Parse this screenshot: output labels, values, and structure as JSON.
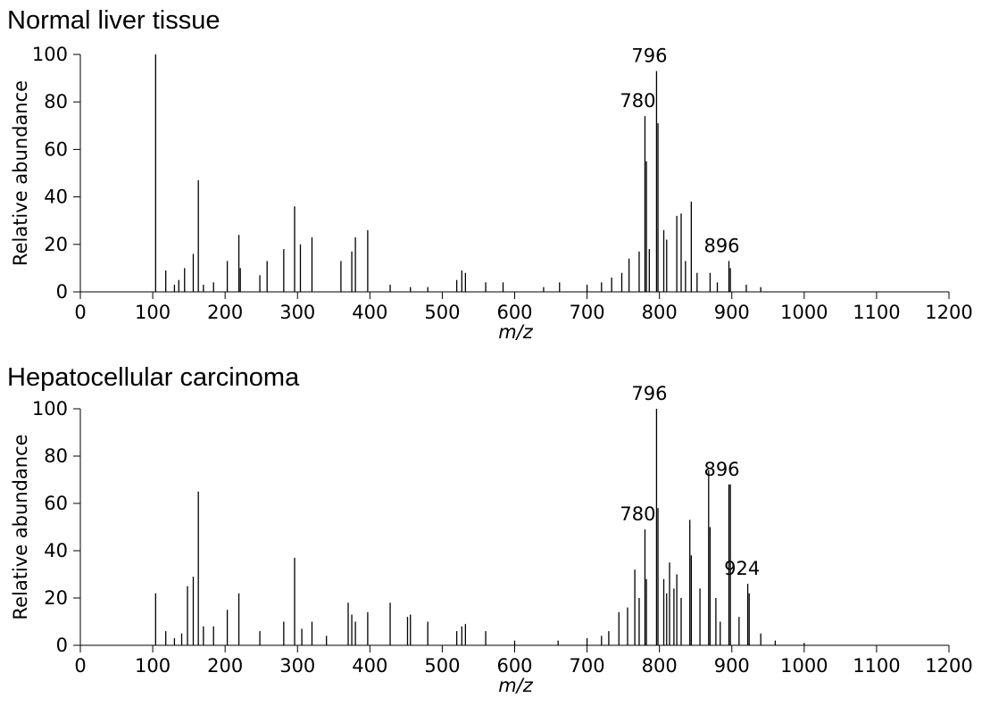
{
  "chart_data": [
    {
      "type": "stem",
      "title": "Normal liver tissue",
      "x_label": "m/z",
      "y_label": "Relative abundance",
      "color": "#000000",
      "x": [
        104,
        118,
        130,
        136,
        144,
        156,
        163,
        170,
        184,
        203,
        219,
        221,
        248,
        258,
        281,
        296,
        304,
        320,
        360,
        375,
        380,
        397,
        428,
        456,
        480,
        520,
        527,
        532,
        560,
        584,
        640,
        662,
        700,
        720,
        734,
        748,
        758,
        772,
        780,
        782,
        786,
        796,
        798,
        806,
        810,
        824,
        830,
        836,
        844,
        852,
        870,
        880,
        896,
        898,
        920,
        940
      ],
      "values": [
        100,
        9,
        3,
        5,
        10,
        16,
        47,
        3,
        4,
        13,
        24,
        10,
        7,
        13,
        18,
        36,
        20,
        23,
        13,
        17,
        23,
        26,
        3,
        2,
        2,
        5,
        9,
        8,
        4,
        4,
        2,
        4,
        3,
        4,
        6,
        8,
        14,
        17,
        74,
        55,
        18,
        93,
        71,
        26,
        22,
        32,
        33,
        13,
        38,
        8,
        8,
        4,
        13,
        10,
        3,
        2
      ],
      "annotations": [
        {
          "text": "780",
          "x": 780,
          "y": 74
        },
        {
          "text": "796",
          "x": 796,
          "y": 93
        },
        {
          "text": "896",
          "x": 896,
          "y": 13
        }
      ],
      "xlim": [
        0,
        1200
      ],
      "xticks": [
        0,
        100,
        200,
        300,
        400,
        500,
        600,
        700,
        800,
        900,
        1000,
        1100,
        1200
      ],
      "ylim": [
        0,
        100
      ],
      "yticks": [
        0,
        20,
        40,
        60,
        80,
        100
      ]
    },
    {
      "type": "stem",
      "title": "Hepatocellular carcinoma",
      "x_label": "m/z",
      "y_label": "Relative abundance",
      "color": "#000000",
      "x": [
        104,
        118,
        130,
        140,
        148,
        156,
        163,
        170,
        184,
        203,
        219,
        248,
        281,
        296,
        306,
        320,
        340,
        370,
        375,
        380,
        397,
        428,
        452,
        456,
        480,
        520,
        527,
        532,
        560,
        600,
        660,
        700,
        720,
        730,
        744,
        756,
        766,
        772,
        780,
        782,
        796,
        798,
        806,
        810,
        814,
        820,
        824,
        830,
        842,
        844,
        856,
        868,
        870,
        878,
        884,
        896,
        898,
        910,
        922,
        924,
        940,
        960,
        1000
      ],
      "values": [
        22,
        6,
        3,
        5,
        25,
        29,
        65,
        8,
        8,
        15,
        22,
        6,
        10,
        37,
        7,
        10,
        4,
        18,
        13,
        10,
        14,
        18,
        12,
        13,
        10,
        6,
        8,
        9,
        6,
        2,
        2,
        3,
        4,
        6,
        14,
        16,
        32,
        20,
        49,
        28,
        100,
        58,
        28,
        22,
        35,
        24,
        30,
        20,
        53,
        38,
        24,
        74,
        50,
        20,
        10,
        68,
        68,
        12,
        26,
        22,
        5,
        2,
        1
      ],
      "annotations": [
        {
          "text": "780",
          "x": 780,
          "y": 49
        },
        {
          "text": "796",
          "x": 796,
          "y": 100
        },
        {
          "text": "896",
          "x": 896,
          "y": 68
        },
        {
          "text": "924",
          "x": 924,
          "y": 26
        }
      ],
      "xlim": [
        0,
        1200
      ],
      "xticks": [
        0,
        100,
        200,
        300,
        400,
        500,
        600,
        700,
        800,
        900,
        1000,
        1100,
        1200
      ],
      "ylim": [
        0,
        100
      ],
      "yticks": [
        0,
        20,
        40,
        60,
        80,
        100
      ]
    }
  ]
}
